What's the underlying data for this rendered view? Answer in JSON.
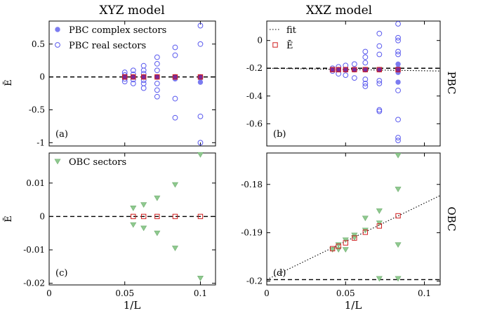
{
  "colors": {
    "complex": "#7b7bf0",
    "real": "#5a5aee",
    "obc": "#8fc98f",
    "obc_stroke": "#6fae6f",
    "mean": "#d02020",
    "purple": "#7a2a9a",
    "fit": "#000000"
  },
  "col_titles": [
    "XYZ model",
    "XXZ model"
  ],
  "row_labels": [
    "PBC",
    "OBC"
  ],
  "ylabel": "Ē",
  "xlabel": "1/L",
  "legend": {
    "complex": "PBC complex sectors",
    "real": "PBC real sectors",
    "obc": "OBC sectors",
    "fit": "fit",
    "mean": "Ē"
  },
  "chart_data": [
    {
      "panel": "(a)",
      "type": "scatter",
      "xlim": [
        0,
        0.11
      ],
      "ylim": [
        -1.05,
        0.85
      ],
      "xticks": [
        0,
        0.05,
        0.1
      ],
      "xticklabels": [
        "",
        "",
        ""
      ],
      "yticks": [
        -1,
        -0.5,
        0,
        0.5
      ],
      "yticklabels": [
        "-1",
        "-0.5",
        "0",
        "0.5"
      ],
      "legend_items": [
        "complex",
        "real"
      ],
      "legend_pos": "top-left",
      "hline": 0,
      "real": [
        [
          0.05,
          0.07
        ],
        [
          0.05,
          0.03
        ],
        [
          0.05,
          -0.03
        ],
        [
          0.05,
          -0.07
        ],
        [
          0.0556,
          0.1
        ],
        [
          0.0556,
          0.04
        ],
        [
          0.0556,
          -0.04
        ],
        [
          0.0556,
          -0.1
        ],
        [
          0.0625,
          0.17
        ],
        [
          0.0625,
          0.1
        ],
        [
          0.0625,
          0.05
        ],
        [
          0.0625,
          -0.05
        ],
        [
          0.0625,
          -0.1
        ],
        [
          0.0625,
          -0.17
        ],
        [
          0.0714,
          0.3
        ],
        [
          0.0714,
          0.2
        ],
        [
          0.0714,
          0.1
        ],
        [
          0.0714,
          -0.1
        ],
        [
          0.0714,
          -0.2
        ],
        [
          0.0714,
          -0.3
        ],
        [
          0.0833,
          0.45
        ],
        [
          0.0833,
          0.33
        ],
        [
          0.0833,
          -0.33
        ],
        [
          0.0833,
          -0.62
        ],
        [
          0.1,
          0.78
        ],
        [
          0.1,
          0.5
        ],
        [
          0.1,
          -0.6
        ],
        [
          0.1,
          -1.0
        ]
      ],
      "complex": [
        [
          0.05,
          0
        ],
        [
          0.0556,
          0
        ],
        [
          0.0625,
          0
        ],
        [
          0.0714,
          0
        ],
        [
          0.0833,
          0
        ],
        [
          0.0833,
          -0.03
        ],
        [
          0.1,
          -0.02
        ],
        [
          0.1,
          -0.08
        ]
      ],
      "mean": [
        [
          0.05,
          0
        ],
        [
          0.0556,
          0
        ],
        [
          0.0625,
          0
        ],
        [
          0.0714,
          0
        ],
        [
          0.0833,
          0
        ],
        [
          0.1,
          0
        ]
      ],
      "tag": "(a)"
    },
    {
      "panel": "(b)",
      "type": "scatter",
      "xlim": [
        0,
        0.11
      ],
      "ylim": [
        -0.76,
        0.14
      ],
      "xticks": [
        0,
        0.05,
        0.1
      ],
      "xticklabels": [
        "",
        "",
        ""
      ],
      "yticks": [
        -0.6,
        -0.4,
        -0.2,
        0
      ],
      "yticklabels": [
        "-0.6",
        "-0.4",
        "-0.2",
        "0"
      ],
      "legend_items": [
        "fit",
        "mean"
      ],
      "legend_pos": "top-left",
      "hline": -0.2,
      "fit_line": [
        [
          0,
          -0.2
        ],
        [
          0.11,
          -0.22
        ]
      ],
      "real": [
        [
          0.0417,
          -0.2
        ],
        [
          0.0417,
          -0.22
        ],
        [
          0.0455,
          -0.19
        ],
        [
          0.0455,
          -0.24
        ],
        [
          0.05,
          -0.18
        ],
        [
          0.05,
          -0.25
        ],
        [
          0.0556,
          -0.17
        ],
        [
          0.0556,
          -0.27
        ],
        [
          0.0625,
          -0.08
        ],
        [
          0.0625,
          -0.12
        ],
        [
          0.0625,
          -0.16
        ],
        [
          0.0625,
          -0.28
        ],
        [
          0.0625,
          -0.31
        ],
        [
          0.0625,
          -0.33
        ],
        [
          0.0714,
          0.05
        ],
        [
          0.0714,
          -0.04
        ],
        [
          0.0714,
          -0.1
        ],
        [
          0.0714,
          -0.29
        ],
        [
          0.0714,
          -0.31
        ],
        [
          0.0714,
          -0.5
        ],
        [
          0.0714,
          -0.51
        ],
        [
          0.0833,
          0.12
        ],
        [
          0.0833,
          0.02
        ],
        [
          0.0833,
          0
        ],
        [
          0.0833,
          -0.08
        ],
        [
          0.0833,
          -0.1
        ],
        [
          0.0833,
          -0.36
        ],
        [
          0.0833,
          -0.57
        ],
        [
          0.0833,
          -0.7
        ],
        [
          0.0833,
          -0.72
        ]
      ],
      "complex": [
        [
          0.0417,
          -0.21
        ],
        [
          0.0455,
          -0.21
        ],
        [
          0.05,
          -0.21
        ],
        [
          0.0556,
          -0.21
        ],
        [
          0.0625,
          -0.21
        ],
        [
          0.0714,
          -0.21
        ],
        [
          0.0833,
          -0.17
        ],
        [
          0.0833,
          -0.2
        ],
        [
          0.0833,
          -0.23
        ],
        [
          0.0833,
          -0.3
        ]
      ],
      "mean": [
        [
          0.0417,
          -0.21
        ],
        [
          0.0455,
          -0.21
        ],
        [
          0.05,
          -0.21
        ],
        [
          0.0556,
          -0.21
        ],
        [
          0.0625,
          -0.21
        ],
        [
          0.0714,
          -0.21
        ],
        [
          0.0833,
          -0.21
        ]
      ],
      "tag": "(b)"
    },
    {
      "panel": "(c)",
      "type": "scatter",
      "xlim": [
        0,
        0.11
      ],
      "ylim": [
        -0.0205,
        0.019
      ],
      "xticks": [
        0,
        0.05,
        0.1
      ],
      "xticklabels": [
        "0",
        "0.05",
        "0.1"
      ],
      "yticks": [
        -0.02,
        -0.01,
        0,
        0.01
      ],
      "yticklabels": [
        "-0.02",
        "-0.01",
        "0",
        "0.01"
      ],
      "legend_items": [
        "obc"
      ],
      "legend_pos": "top-left",
      "hline": 0,
      "obc": [
        [
          0.0556,
          0.0025
        ],
        [
          0.0556,
          -0.0025
        ],
        [
          0.0625,
          0.0035
        ],
        [
          0.0625,
          -0.0035
        ],
        [
          0.0714,
          0.0055
        ],
        [
          0.0714,
          -0.005
        ],
        [
          0.0833,
          0.0095
        ],
        [
          0.0833,
          -0.0095
        ],
        [
          0.1,
          0.0185
        ],
        [
          0.1,
          -0.0185
        ]
      ],
      "mean": [
        [
          0.0556,
          0
        ],
        [
          0.0625,
          0
        ],
        [
          0.0714,
          0
        ],
        [
          0.0833,
          0
        ],
        [
          0.1,
          0
        ]
      ],
      "tag": "(c)"
    },
    {
      "panel": "(d)",
      "type": "scatter",
      "xlim": [
        0,
        0.11
      ],
      "ylim": [
        -0.2008,
        -0.1735
      ],
      "xticks": [
        0,
        0.05,
        0.1
      ],
      "xticklabels": [
        "0",
        "0.05",
        "0.1"
      ],
      "yticks": [
        -0.2,
        -0.19,
        -0.18
      ],
      "yticklabels": [
        "-0.2",
        "-0.19",
        "-0.18"
      ],
      "legend_items": [],
      "legend_pos": "",
      "hline": -0.1997,
      "fit_line": [
        [
          0,
          -0.1997
        ],
        [
          0.11,
          -0.1823
        ]
      ],
      "obc": [
        [
          0.0417,
          -0.1935
        ],
        [
          0.0455,
          -0.1925
        ],
        [
          0.0455,
          -0.1935
        ],
        [
          0.05,
          -0.1915
        ],
        [
          0.05,
          -0.1935
        ],
        [
          0.0556,
          -0.1905
        ],
        [
          0.0556,
          -0.191
        ],
        [
          0.0625,
          -0.187
        ],
        [
          0.0625,
          -0.1895
        ],
        [
          0.0714,
          -0.1855
        ],
        [
          0.0714,
          -0.188
        ],
        [
          0.0714,
          -0.1995
        ],
        [
          0.0833,
          -0.174
        ],
        [
          0.0833,
          -0.181
        ],
        [
          0.0833,
          -0.1925
        ],
        [
          0.0833,
          -0.1995
        ]
      ],
      "mean": [
        [
          0.0417,
          -0.1933
        ],
        [
          0.0455,
          -0.1928
        ],
        [
          0.05,
          -0.1921
        ],
        [
          0.0556,
          -0.1911
        ],
        [
          0.0625,
          -0.1899
        ],
        [
          0.0714,
          -0.1886
        ],
        [
          0.0833,
          -0.1865
        ]
      ],
      "tag": "(d)"
    }
  ]
}
